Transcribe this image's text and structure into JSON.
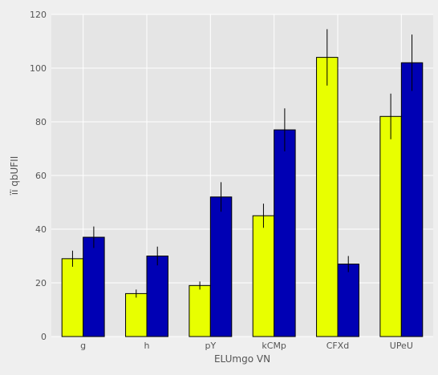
{
  "chart_data": {
    "type": "bar",
    "title": "",
    "xlabel": "ELUmgo VN",
    "ylabel": "ïï qbUFII",
    "categories": [
      "g",
      "h",
      "pY",
      "kCMp",
      "CFXd",
      "UPeU"
    ],
    "series": [
      {
        "color": "#e8ff00",
        "values": [
          29,
          16,
          19,
          45,
          104,
          82
        ],
        "errors": [
          3,
          1.5,
          1.5,
          4.5,
          10.5,
          8.5
        ]
      },
      {
        "color": "#0000b4",
        "values": [
          37,
          30,
          52,
          77,
          27,
          102
        ],
        "errors": [
          4,
          3.5,
          5.5,
          8,
          3,
          10.5
        ]
      }
    ],
    "ylim": [
      0,
      120
    ],
    "yticks": [
      0,
      20,
      40,
      60,
      80,
      100,
      120
    ],
    "grid": true,
    "plot_background": "#e5e5e5"
  }
}
